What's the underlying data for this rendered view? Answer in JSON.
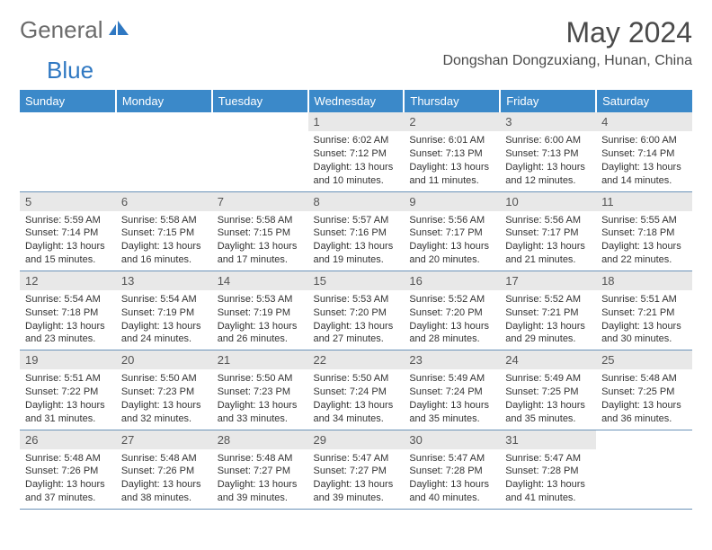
{
  "logo": {
    "part1": "General",
    "part2": "Blue"
  },
  "title": "May 2024",
  "location": "Dongshan Dongzuxiang, Hunan, China",
  "colors": {
    "header_bg": "#3b89c9",
    "header_text": "#ffffff",
    "daynum_bg": "#e8e8e8",
    "border": "#6a92b8",
    "logo_gray": "#6b6b6b",
    "logo_blue": "#2f78c2"
  },
  "day_headers": [
    "Sunday",
    "Monday",
    "Tuesday",
    "Wednesday",
    "Thursday",
    "Friday",
    "Saturday"
  ],
  "weeks": [
    [
      null,
      null,
      null,
      {
        "n": "1",
        "sr": "6:02 AM",
        "ss": "7:12 PM",
        "dl": "13 hours and 10 minutes."
      },
      {
        "n": "2",
        "sr": "6:01 AM",
        "ss": "7:13 PM",
        "dl": "13 hours and 11 minutes."
      },
      {
        "n": "3",
        "sr": "6:00 AM",
        "ss": "7:13 PM",
        "dl": "13 hours and 12 minutes."
      },
      {
        "n": "4",
        "sr": "6:00 AM",
        "ss": "7:14 PM",
        "dl": "13 hours and 14 minutes."
      }
    ],
    [
      {
        "n": "5",
        "sr": "5:59 AM",
        "ss": "7:14 PM",
        "dl": "13 hours and 15 minutes."
      },
      {
        "n": "6",
        "sr": "5:58 AM",
        "ss": "7:15 PM",
        "dl": "13 hours and 16 minutes."
      },
      {
        "n": "7",
        "sr": "5:58 AM",
        "ss": "7:15 PM",
        "dl": "13 hours and 17 minutes."
      },
      {
        "n": "8",
        "sr": "5:57 AM",
        "ss": "7:16 PM",
        "dl": "13 hours and 19 minutes."
      },
      {
        "n": "9",
        "sr": "5:56 AM",
        "ss": "7:17 PM",
        "dl": "13 hours and 20 minutes."
      },
      {
        "n": "10",
        "sr": "5:56 AM",
        "ss": "7:17 PM",
        "dl": "13 hours and 21 minutes."
      },
      {
        "n": "11",
        "sr": "5:55 AM",
        "ss": "7:18 PM",
        "dl": "13 hours and 22 minutes."
      }
    ],
    [
      {
        "n": "12",
        "sr": "5:54 AM",
        "ss": "7:18 PM",
        "dl": "13 hours and 23 minutes."
      },
      {
        "n": "13",
        "sr": "5:54 AM",
        "ss": "7:19 PM",
        "dl": "13 hours and 24 minutes."
      },
      {
        "n": "14",
        "sr": "5:53 AM",
        "ss": "7:19 PM",
        "dl": "13 hours and 26 minutes."
      },
      {
        "n": "15",
        "sr": "5:53 AM",
        "ss": "7:20 PM",
        "dl": "13 hours and 27 minutes."
      },
      {
        "n": "16",
        "sr": "5:52 AM",
        "ss": "7:20 PM",
        "dl": "13 hours and 28 minutes."
      },
      {
        "n": "17",
        "sr": "5:52 AM",
        "ss": "7:21 PM",
        "dl": "13 hours and 29 minutes."
      },
      {
        "n": "18",
        "sr": "5:51 AM",
        "ss": "7:21 PM",
        "dl": "13 hours and 30 minutes."
      }
    ],
    [
      {
        "n": "19",
        "sr": "5:51 AM",
        "ss": "7:22 PM",
        "dl": "13 hours and 31 minutes."
      },
      {
        "n": "20",
        "sr": "5:50 AM",
        "ss": "7:23 PM",
        "dl": "13 hours and 32 minutes."
      },
      {
        "n": "21",
        "sr": "5:50 AM",
        "ss": "7:23 PM",
        "dl": "13 hours and 33 minutes."
      },
      {
        "n": "22",
        "sr": "5:50 AM",
        "ss": "7:24 PM",
        "dl": "13 hours and 34 minutes."
      },
      {
        "n": "23",
        "sr": "5:49 AM",
        "ss": "7:24 PM",
        "dl": "13 hours and 35 minutes."
      },
      {
        "n": "24",
        "sr": "5:49 AM",
        "ss": "7:25 PM",
        "dl": "13 hours and 35 minutes."
      },
      {
        "n": "25",
        "sr": "5:48 AM",
        "ss": "7:25 PM",
        "dl": "13 hours and 36 minutes."
      }
    ],
    [
      {
        "n": "26",
        "sr": "5:48 AM",
        "ss": "7:26 PM",
        "dl": "13 hours and 37 minutes."
      },
      {
        "n": "27",
        "sr": "5:48 AM",
        "ss": "7:26 PM",
        "dl": "13 hours and 38 minutes."
      },
      {
        "n": "28",
        "sr": "5:48 AM",
        "ss": "7:27 PM",
        "dl": "13 hours and 39 minutes."
      },
      {
        "n": "29",
        "sr": "5:47 AM",
        "ss": "7:27 PM",
        "dl": "13 hours and 39 minutes."
      },
      {
        "n": "30",
        "sr": "5:47 AM",
        "ss": "7:28 PM",
        "dl": "13 hours and 40 minutes."
      },
      {
        "n": "31",
        "sr": "5:47 AM",
        "ss": "7:28 PM",
        "dl": "13 hours and 41 minutes."
      },
      null
    ]
  ],
  "labels": {
    "sunrise": "Sunrise:",
    "sunset": "Sunset:",
    "daylight": "Daylight:"
  }
}
